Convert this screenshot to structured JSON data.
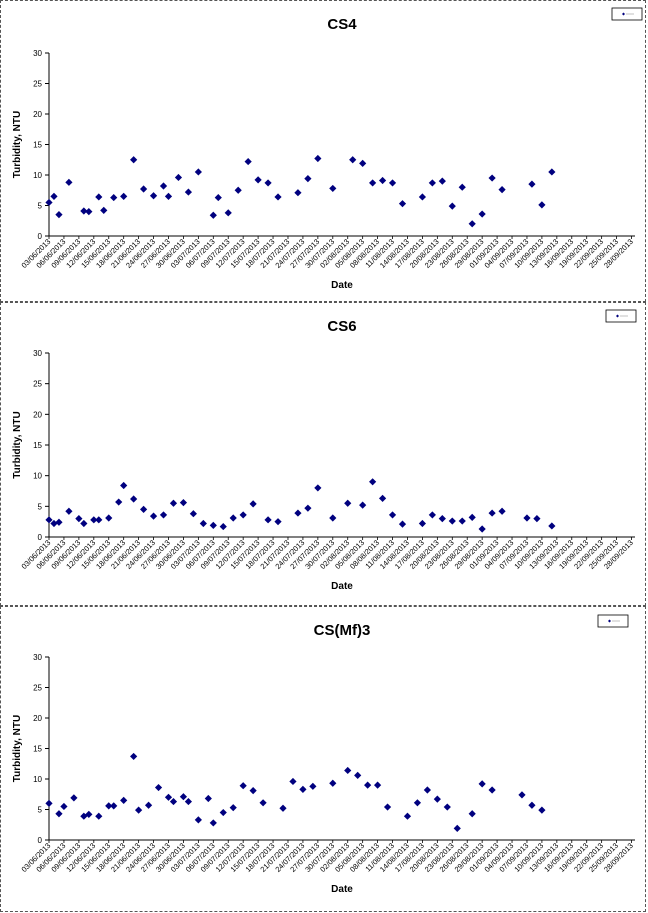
{
  "chart_data": [
    {
      "type": "scatter",
      "title": "CS4",
      "xlabel": "Date",
      "ylabel": "Turbidity, NTU",
      "ylim": [
        0,
        30
      ],
      "yticks": [
        0,
        5,
        10,
        15,
        20,
        25,
        30
      ],
      "x_tick_labels": [
        "03/06/2013",
        "06/06/2013",
        "09/06/2013",
        "12/06/2013",
        "15/06/2013",
        "18/06/2013",
        "21/06/2013",
        "24/06/2013",
        "27/06/2013",
        "30/06/2013",
        "03/07/2013",
        "06/07/2013",
        "09/07/2013",
        "12/07/2013",
        "15/07/2013",
        "18/07/2013",
        "21/07/2013",
        "24/07/2013",
        "27/07/2013",
        "30/07/2013",
        "02/08/2013",
        "05/08/2013",
        "08/08/2013",
        "11/08/2013",
        "14/08/2013",
        "17/08/2013",
        "20/08/2013",
        "23/08/2013",
        "26/08/2013",
        "29/08/2013",
        "01/09/2013",
        "04/09/2013",
        "07/09/2013",
        "10/09/2013",
        "13/09/2013",
        "16/09/2013",
        "19/09/2013",
        "22/09/2013",
        "25/09/2013",
        "28/09/2013"
      ],
      "legend": "top-right",
      "grid": false,
      "marker_color": "#00007f",
      "points": [
        {
          "x": "03/06/2013",
          "y": 5.5
        },
        {
          "x": "04/06/2013",
          "y": 6.5
        },
        {
          "x": "05/06/2013",
          "y": 3.5
        },
        {
          "x": "07/06/2013",
          "y": 8.8
        },
        {
          "x": "10/06/2013",
          "y": 4.1
        },
        {
          "x": "11/06/2013",
          "y": 4.0
        },
        {
          "x": "13/06/2013",
          "y": 6.4
        },
        {
          "x": "14/06/2013",
          "y": 4.2
        },
        {
          "x": "16/06/2013",
          "y": 6.3
        },
        {
          "x": "18/06/2013",
          "y": 6.5
        },
        {
          "x": "20/06/2013",
          "y": 12.5
        },
        {
          "x": "22/06/2013",
          "y": 7.7
        },
        {
          "x": "24/06/2013",
          "y": 6.6
        },
        {
          "x": "26/06/2013",
          "y": 8.2
        },
        {
          "x": "27/06/2013",
          "y": 6.5
        },
        {
          "x": "29/06/2013",
          "y": 9.6
        },
        {
          "x": "01/07/2013",
          "y": 7.2
        },
        {
          "x": "03/07/2013",
          "y": 10.5
        },
        {
          "x": "06/07/2013",
          "y": 3.4
        },
        {
          "x": "07/07/2013",
          "y": 6.3
        },
        {
          "x": "09/07/2013",
          "y": 3.8
        },
        {
          "x": "11/07/2013",
          "y": 7.5
        },
        {
          "x": "13/07/2013",
          "y": 12.2
        },
        {
          "x": "15/07/2013",
          "y": 9.2
        },
        {
          "x": "17/07/2013",
          "y": 8.7
        },
        {
          "x": "19/07/2013",
          "y": 6.4
        },
        {
          "x": "23/07/2013",
          "y": 7.1
        },
        {
          "x": "25/07/2013",
          "y": 9.4
        },
        {
          "x": "27/07/2013",
          "y": 12.7
        },
        {
          "x": "30/07/2013",
          "y": 7.8
        },
        {
          "x": "03/08/2013",
          "y": 12.5
        },
        {
          "x": "05/08/2013",
          "y": 11.9
        },
        {
          "x": "07/08/2013",
          "y": 8.7
        },
        {
          "x": "09/08/2013",
          "y": 9.1
        },
        {
          "x": "11/08/2013",
          "y": 8.7
        },
        {
          "x": "13/08/2013",
          "y": 5.3
        },
        {
          "x": "17/08/2013",
          "y": 6.4
        },
        {
          "x": "19/08/2013",
          "y": 8.7
        },
        {
          "x": "21/08/2013",
          "y": 9.0
        },
        {
          "x": "23/08/2013",
          "y": 4.9
        },
        {
          "x": "25/08/2013",
          "y": 8.0
        },
        {
          "x": "27/08/2013",
          "y": 2.0
        },
        {
          "x": "29/08/2013",
          "y": 3.6
        },
        {
          "x": "31/08/2013",
          "y": 9.5
        },
        {
          "x": "02/09/2013",
          "y": 7.6
        },
        {
          "x": "08/09/2013",
          "y": 8.5
        },
        {
          "x": "10/09/2013",
          "y": 5.1
        },
        {
          "x": "12/09/2013",
          "y": 10.5
        }
      ]
    },
    {
      "type": "scatter",
      "title": "CS6",
      "xlabel": "Date",
      "ylabel": "Turbidity, NTU",
      "ylim": [
        0,
        30
      ],
      "yticks": [
        0,
        5,
        10,
        15,
        20,
        25,
        30
      ],
      "x_tick_labels": [
        "03/06/2013",
        "06/06/2013",
        "09/06/2013",
        "12/06/2013",
        "15/06/2013",
        "18/06/2013",
        "21/06/2013",
        "24/06/2013",
        "27/06/2013",
        "30/06/2013",
        "03/07/2013",
        "06/07/2013",
        "09/07/2013",
        "12/07/2013",
        "15/07/2013",
        "18/07/2013",
        "21/07/2013",
        "24/07/2013",
        "27/07/2013",
        "30/07/2013",
        "02/08/2013",
        "05/08/2013",
        "08/08/2013",
        "11/08/2013",
        "14/08/2013",
        "17/08/2013",
        "20/08/2013",
        "23/08/2013",
        "26/08/2013",
        "29/08/2013",
        "01/09/2013",
        "04/09/2013",
        "07/09/2013",
        "10/09/2013",
        "13/09/2013",
        "16/09/2013",
        "19/09/2013",
        "22/09/2013",
        "25/09/2013",
        "28/09/2013"
      ],
      "legend": "top-right",
      "grid": false,
      "marker_color": "#00007f",
      "points": [
        {
          "x": "03/06/2013",
          "y": 2.8
        },
        {
          "x": "04/06/2013",
          "y": 2.2
        },
        {
          "x": "05/06/2013",
          "y": 2.4
        },
        {
          "x": "07/06/2013",
          "y": 4.2
        },
        {
          "x": "09/06/2013",
          "y": 3.0
        },
        {
          "x": "10/06/2013",
          "y": 2.2
        },
        {
          "x": "12/06/2013",
          "y": 2.8
        },
        {
          "x": "13/06/2013",
          "y": 2.8
        },
        {
          "x": "15/06/2013",
          "y": 3.1
        },
        {
          "x": "17/06/2013",
          "y": 5.7
        },
        {
          "x": "18/06/2013",
          "y": 8.4
        },
        {
          "x": "20/06/2013",
          "y": 6.2
        },
        {
          "x": "22/06/2013",
          "y": 4.5
        },
        {
          "x": "24/06/2013",
          "y": 3.4
        },
        {
          "x": "26/06/2013",
          "y": 3.6
        },
        {
          "x": "28/06/2013",
          "y": 5.5
        },
        {
          "x": "30/06/2013",
          "y": 5.6
        },
        {
          "x": "02/07/2013",
          "y": 3.8
        },
        {
          "x": "04/07/2013",
          "y": 2.2
        },
        {
          "x": "06/07/2013",
          "y": 1.9
        },
        {
          "x": "08/07/2013",
          "y": 1.7
        },
        {
          "x": "10/07/2013",
          "y": 3.1
        },
        {
          "x": "12/07/2013",
          "y": 3.6
        },
        {
          "x": "14/07/2013",
          "y": 5.4
        },
        {
          "x": "17/07/2013",
          "y": 2.8
        },
        {
          "x": "19/07/2013",
          "y": 2.5
        },
        {
          "x": "23/07/2013",
          "y": 3.9
        },
        {
          "x": "25/07/2013",
          "y": 4.7
        },
        {
          "x": "27/07/2013",
          "y": 8.0
        },
        {
          "x": "30/07/2013",
          "y": 3.1
        },
        {
          "x": "02/08/2013",
          "y": 5.5
        },
        {
          "x": "05/08/2013",
          "y": 5.2
        },
        {
          "x": "07/08/2013",
          "y": 9.0
        },
        {
          "x": "09/08/2013",
          "y": 6.3
        },
        {
          "x": "11/08/2013",
          "y": 3.6
        },
        {
          "x": "13/08/2013",
          "y": 2.1
        },
        {
          "x": "17/08/2013",
          "y": 2.2
        },
        {
          "x": "19/08/2013",
          "y": 3.6
        },
        {
          "x": "21/08/2013",
          "y": 3.0
        },
        {
          "x": "23/08/2013",
          "y": 2.6
        },
        {
          "x": "25/08/2013",
          "y": 2.6
        },
        {
          "x": "27/08/2013",
          "y": 3.2
        },
        {
          "x": "29/08/2013",
          "y": 1.3
        },
        {
          "x": "31/08/2013",
          "y": 3.9
        },
        {
          "x": "02/09/2013",
          "y": 4.2
        },
        {
          "x": "07/09/2013",
          "y": 3.1
        },
        {
          "x": "09/09/2013",
          "y": 3.0
        },
        {
          "x": "12/09/2013",
          "y": 1.8
        }
      ]
    },
    {
      "type": "scatter",
      "title": "CS(Mf)3",
      "xlabel": "Date",
      "ylabel": "Turbidity, NTU",
      "ylim": [
        0,
        30
      ],
      "yticks": [
        0,
        5,
        10,
        15,
        20,
        25,
        30
      ],
      "x_tick_labels": [
        "03/06/2013",
        "06/06/2013",
        "09/06/2013",
        "12/06/2013",
        "15/06/2013",
        "18/06/2013",
        "21/06/2013",
        "24/06/2013",
        "27/06/2013",
        "30/06/2013",
        "03/07/2013",
        "06/07/2013",
        "09/07/2013",
        "12/07/2013",
        "15/07/2013",
        "18/07/2013",
        "21/07/2013",
        "24/07/2013",
        "27/07/2013",
        "30/07/2013",
        "02/08/2013",
        "05/08/2013",
        "08/08/2013",
        "11/08/2013",
        "14/08/2013",
        "17/08/2013",
        "20/08/2013",
        "23/08/2013",
        "26/08/2013",
        "29/08/2013",
        "01/09/2013",
        "04/09/2013",
        "07/09/2013",
        "10/09/2013",
        "13/09/2013",
        "16/09/2013",
        "19/09/2013",
        "22/09/2013",
        "25/09/2013",
        "28/09/2013"
      ],
      "legend": "top-right",
      "grid": false,
      "marker_color": "#00007f",
      "points": [
        {
          "x": "03/06/2013",
          "y": 6.0
        },
        {
          "x": "05/06/2013",
          "y": 4.3
        },
        {
          "x": "06/06/2013",
          "y": 5.5
        },
        {
          "x": "08/06/2013",
          "y": 6.9
        },
        {
          "x": "10/06/2013",
          "y": 3.9
        },
        {
          "x": "11/06/2013",
          "y": 4.2
        },
        {
          "x": "13/06/2013",
          "y": 3.9
        },
        {
          "x": "15/06/2013",
          "y": 5.6
        },
        {
          "x": "16/06/2013",
          "y": 5.6
        },
        {
          "x": "18/06/2013",
          "y": 6.5
        },
        {
          "x": "20/06/2013",
          "y": 13.7
        },
        {
          "x": "21/06/2013",
          "y": 4.9
        },
        {
          "x": "23/06/2013",
          "y": 5.7
        },
        {
          "x": "25/06/2013",
          "y": 8.6
        },
        {
          "x": "27/06/2013",
          "y": 7.0
        },
        {
          "x": "28/06/2013",
          "y": 6.3
        },
        {
          "x": "30/06/2013",
          "y": 7.1
        },
        {
          "x": "01/07/2013",
          "y": 6.3
        },
        {
          "x": "03/07/2013",
          "y": 3.3
        },
        {
          "x": "05/07/2013",
          "y": 6.8
        },
        {
          "x": "06/07/2013",
          "y": 2.8
        },
        {
          "x": "08/07/2013",
          "y": 4.5
        },
        {
          "x": "10/07/2013",
          "y": 5.3
        },
        {
          "x": "12/07/2013",
          "y": 8.9
        },
        {
          "x": "14/07/2013",
          "y": 8.1
        },
        {
          "x": "16/07/2013",
          "y": 6.1
        },
        {
          "x": "20/07/2013",
          "y": 5.2
        },
        {
          "x": "22/07/2013",
          "y": 9.6
        },
        {
          "x": "24/07/2013",
          "y": 8.3
        },
        {
          "x": "26/07/2013",
          "y": 8.8
        },
        {
          "x": "30/07/2013",
          "y": 9.3
        },
        {
          "x": "02/08/2013",
          "y": 11.4
        },
        {
          "x": "04/08/2013",
          "y": 10.6
        },
        {
          "x": "06/08/2013",
          "y": 9.0
        },
        {
          "x": "08/08/2013",
          "y": 9.0
        },
        {
          "x": "10/08/2013",
          "y": 5.4
        },
        {
          "x": "14/08/2013",
          "y": 3.9
        },
        {
          "x": "16/08/2013",
          "y": 6.1
        },
        {
          "x": "18/08/2013",
          "y": 8.2
        },
        {
          "x": "20/08/2013",
          "y": 6.7
        },
        {
          "x": "22/08/2013",
          "y": 5.4
        },
        {
          "x": "24/08/2013",
          "y": 1.9
        },
        {
          "x": "27/08/2013",
          "y": 4.3
        },
        {
          "x": "29/08/2013",
          "y": 9.2
        },
        {
          "x": "31/08/2013",
          "y": 8.2
        },
        {
          "x": "06/09/2013",
          "y": 7.4
        },
        {
          "x": "08/09/2013",
          "y": 5.7
        },
        {
          "x": "10/09/2013",
          "y": 4.9
        }
      ]
    }
  ]
}
